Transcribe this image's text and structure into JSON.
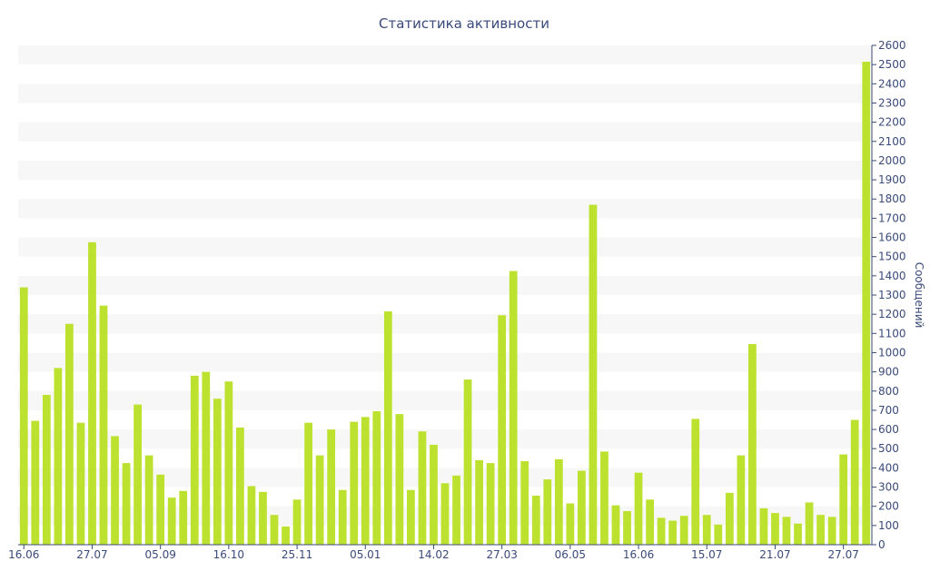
{
  "chart_data": {
    "type": "bar",
    "title": "Статистика активности",
    "xlabel": "",
    "ylabel": "Сообщений",
    "ylim": [
      0,
      2600
    ],
    "y_tick_step": 100,
    "grid": "horizontal-bands",
    "y_axis_position": "right",
    "colors": {
      "bar": "#bde12f",
      "band": "#f7f7f7",
      "axis": "#3a4a7a",
      "text": "#3a4a7a"
    },
    "x_tick_labels": [
      {
        "index": 0,
        "label": "16.06"
      },
      {
        "index": 6,
        "label": "27.07"
      },
      {
        "index": 12,
        "label": "05.09"
      },
      {
        "index": 18,
        "label": "16.10"
      },
      {
        "index": 24,
        "label": "25.11"
      },
      {
        "index": 30,
        "label": "05.01"
      },
      {
        "index": 36,
        "label": "14.02"
      },
      {
        "index": 42,
        "label": "27.03"
      },
      {
        "index": 48,
        "label": "06.05"
      },
      {
        "index": 54,
        "label": "16.06"
      },
      {
        "index": 60,
        "label": "15.07"
      },
      {
        "index": 66,
        "label": "21.07"
      },
      {
        "index": 72,
        "label": "27.07"
      }
    ],
    "values": [
      1340,
      645,
      780,
      920,
      1150,
      635,
      1575,
      1245,
      565,
      425,
      730,
      465,
      365,
      245,
      280,
      880,
      900,
      760,
      850,
      610,
      305,
      275,
      155,
      95,
      235,
      635,
      465,
      600,
      285,
      640,
      665,
      695,
      1215,
      680,
      285,
      590,
      520,
      320,
      360,
      860,
      440,
      425,
      1195,
      1425,
      435,
      255,
      340,
      445,
      215,
      385,
      1770,
      485,
      205,
      175,
      375,
      235,
      140,
      125,
      150,
      655,
      155,
      105,
      270,
      465,
      1045,
      190,
      165,
      145,
      110,
      220,
      155,
      145,
      470,
      650,
      2515
    ]
  }
}
